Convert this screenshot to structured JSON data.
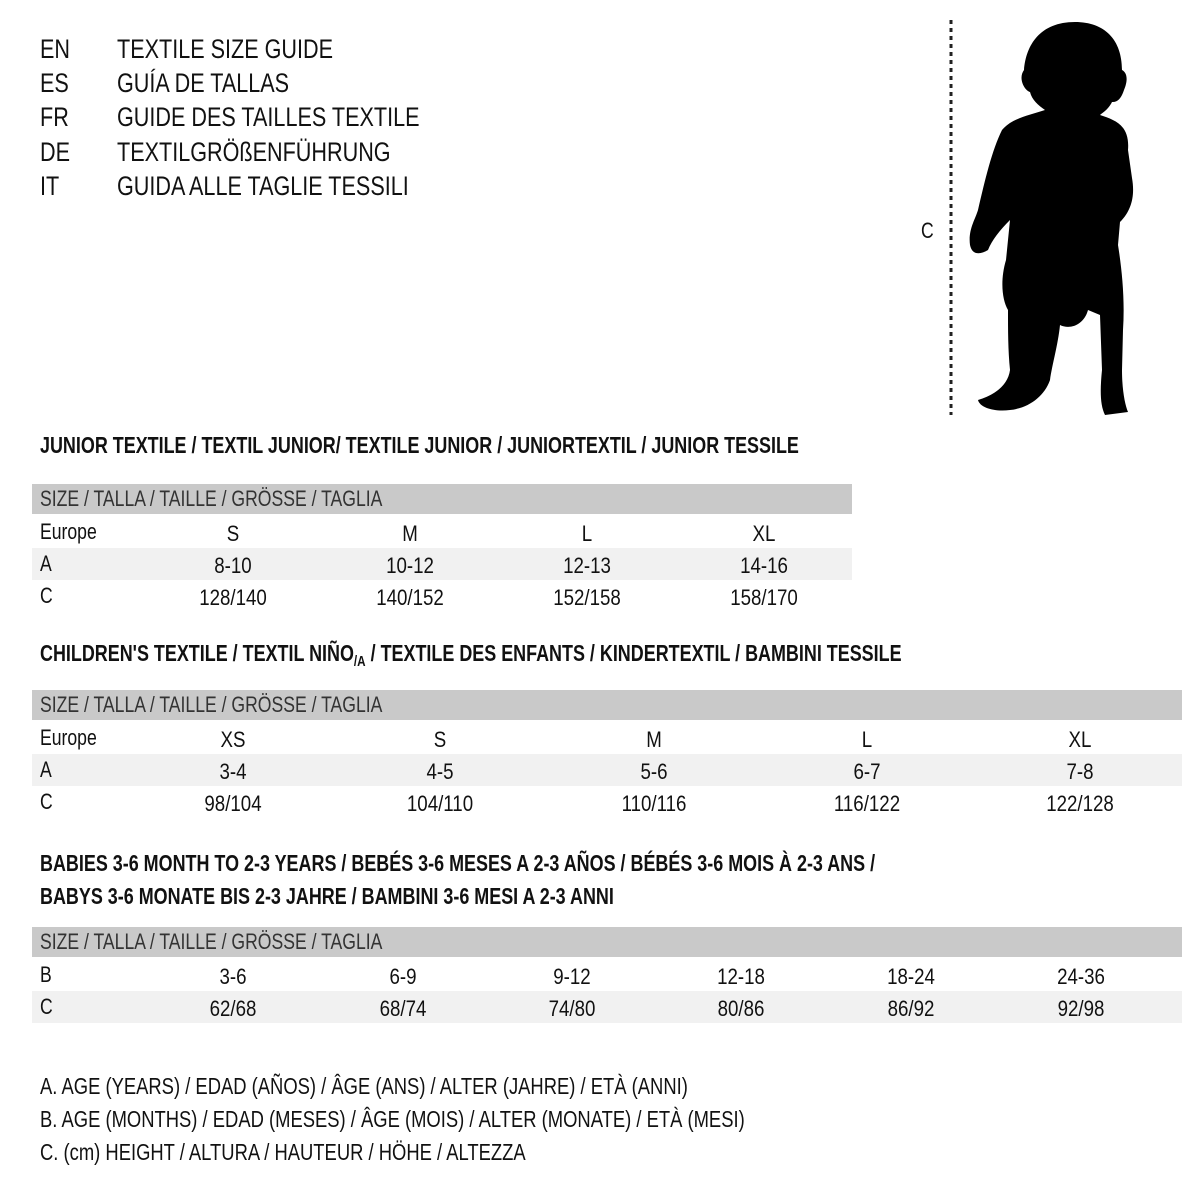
{
  "titles": [
    {
      "code": "EN",
      "text": "TEXTILE SIZE GUIDE"
    },
    {
      "code": "ES",
      "text": "GUÍA DE TALLAS"
    },
    {
      "code": "FR",
      "text": "GUIDE DES TAILLES TEXTILE"
    },
    {
      "code": "DE",
      "text": "TEXTILGRÖßENFÜHRUNG"
    },
    {
      "code": "IT",
      "text": "GUIDA ALLE TAGLIE TESSILI"
    }
  ],
  "figure": {
    "label": "C",
    "icon": "child-silhouette"
  },
  "junior": {
    "heading": "JUNIOR TEXTILE / TEXTIL JUNIOR/ TEXTILE JUNIOR / JUNIORTEXTIL / JUNIOR TESSILE",
    "header": "SIZE / TALLA / TAILLE / GRÖSSE / TAGLIA",
    "rows": [
      {
        "label": "Europe",
        "values": [
          "S",
          "M",
          "L",
          "XL"
        ]
      },
      {
        "label": "A",
        "values": [
          "8-10",
          "10-12",
          "12-13",
          "14-16"
        ]
      },
      {
        "label": "C",
        "values": [
          "128/140",
          "140/152",
          "152/158",
          "158/170"
        ]
      }
    ]
  },
  "children": {
    "heading_a": "CHILDREN'S TEXTILE / TEXTIL NIÑO",
    "heading_sub": "/A",
    "heading_b": " / TEXTILE DES ENFANTS / KINDERTEXTIL / BAMBINI TESSILE",
    "header": "SIZE / TALLA / TAILLE / GRÖSSE / TAGLIA",
    "rows": [
      {
        "label": "Europe",
        "values": [
          "XS",
          "S",
          "M",
          "L",
          "XL"
        ]
      },
      {
        "label": "A",
        "values": [
          "3-4",
          "4-5",
          "5-6",
          "6-7",
          "7-8"
        ]
      },
      {
        "label": "C",
        "values": [
          "98/104",
          "104/110",
          "110/116",
          "116/122",
          "122/128"
        ]
      }
    ]
  },
  "babies": {
    "heading_1": "BABIES 3-6 MONTH TO 2-3 YEARS / BEBÉS 3-6 MESES A 2-3 AÑOS / BÉBÉS 3-6 MOIS À 2-3 ANS /",
    "heading_2": "BABYS 3-6 MONATE BIS 2-3 JAHRE / BAMBINI 3-6 MESI A 2-3 ANNI",
    "header": "SIZE / TALLA / TAILLE / GRÖSSE / TAGLIA",
    "rows": [
      {
        "label": "B",
        "values": [
          "3-6",
          "6-9",
          "9-12",
          "12-18",
          "18-24",
          "24-36"
        ]
      },
      {
        "label": "C",
        "values": [
          "62/68",
          "68/74",
          "74/80",
          "80/86",
          "86/92",
          "92/98"
        ]
      }
    ]
  },
  "legend": [
    "A. AGE (YEARS) / EDAD (AÑOS) / ÂGE (ANS) / ALTER (JAHRE) / ETÀ (ANNI)",
    "B. AGE (MONTHS) / EDAD (MESES) / ÂGE (MOIS) / ALTER (MONATE) / ETÀ (MESI)",
    "C. (cm) HEIGHT / ALTURA / HAUTEUR / HÖHE / ALTEZZA"
  ]
}
